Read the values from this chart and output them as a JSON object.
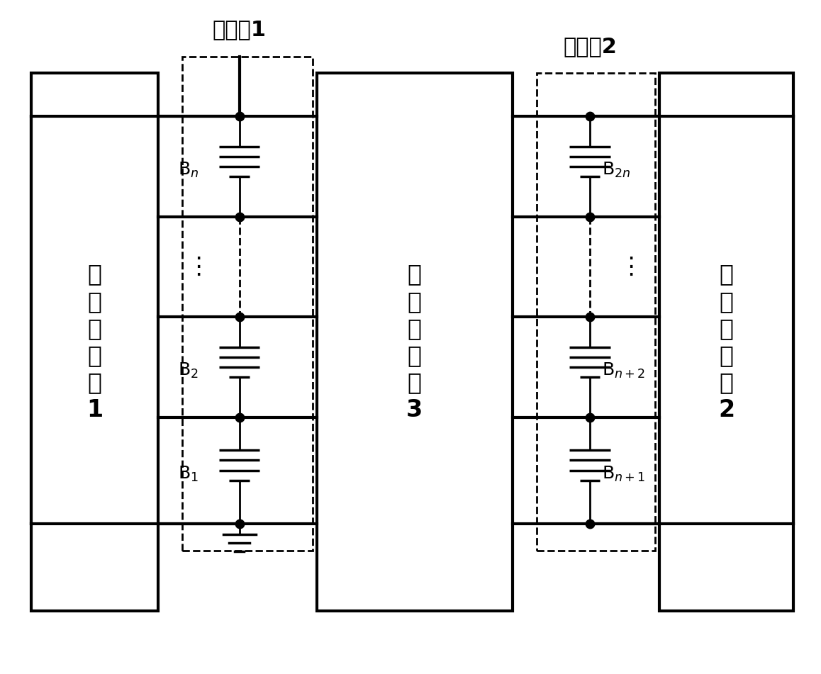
{
  "bg_color": "#ffffff",
  "line_color": "#000000",
  "fig_width": 11.58,
  "fig_height": 9.51,
  "battery_group1_label": "电池组1",
  "battery_group2_label": "电池组2",
  "eq1_lines": [
    "均",
    "衡",
    "子",
    "电",
    "路",
    "1"
  ],
  "eq2_lines": [
    "均",
    "衡",
    "子",
    "电",
    "路",
    "2"
  ],
  "eq3_lines": [
    "均",
    "衡",
    "子",
    "电",
    "路",
    "3"
  ],
  "font_cn": "WenQuanYi Micro Hei",
  "font_fallbacks": [
    "Noto Sans CJK SC",
    "SimHei",
    "DejaVu Sans"
  ]
}
